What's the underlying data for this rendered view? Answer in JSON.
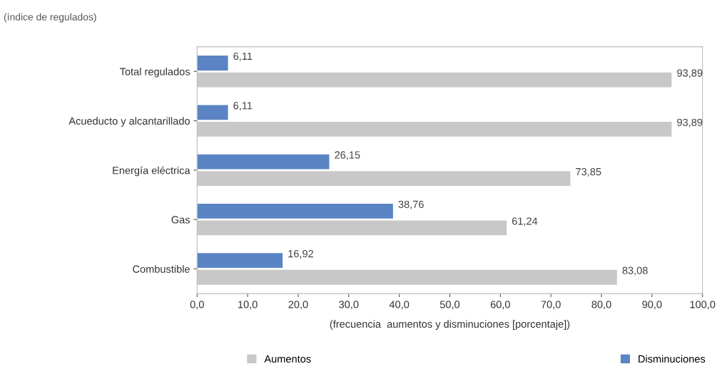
{
  "chart_data": {
    "type": "bar",
    "orientation": "horizontal",
    "subtitle": "(índice de regulados)",
    "xlabel": "(frecuencia  aumentos y disminuciones [porcentaje])",
    "categories": [
      "Total regulados",
      "Acueducto y alcantarillado",
      "Energía eléctrica",
      "Gas",
      "Combustible"
    ],
    "series": [
      {
        "name": "Disminuciones",
        "color": "#5b84c4",
        "values": [
          6.11,
          6.11,
          26.15,
          38.76,
          16.92
        ],
        "value_labels": [
          "6,11",
          "6,11",
          "26,15",
          "38,76",
          "16,92"
        ]
      },
      {
        "name": "Aumentos",
        "color": "#c8c8c8",
        "values": [
          93.89,
          93.89,
          73.85,
          61.24,
          83.08
        ],
        "value_labels": [
          "93,89",
          "93,89",
          "73,85",
          "61,24",
          "83,08"
        ]
      }
    ],
    "xlim": [
      0,
      100
    ],
    "xticks": [
      {
        "value": 0,
        "label": "0,0"
      },
      {
        "value": 10,
        "label": "10,0"
      },
      {
        "value": 20,
        "label": "20,0"
      },
      {
        "value": 30,
        "label": "30,0"
      },
      {
        "value": 40,
        "label": "40,0"
      },
      {
        "value": 50,
        "label": "50,0"
      },
      {
        "value": 60,
        "label": "60,0"
      },
      {
        "value": 70,
        "label": "70,0"
      },
      {
        "value": 80,
        "label": "80,0"
      },
      {
        "value": 90,
        "label": "90,0"
      },
      {
        "value": 100,
        "label": "100,0"
      }
    ],
    "grid": false,
    "legend": "bottom"
  }
}
